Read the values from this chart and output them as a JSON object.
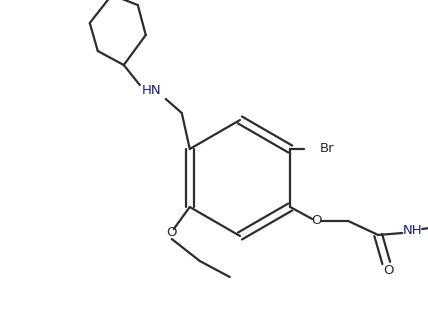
{
  "background_color": "#ffffff",
  "line_color": "#2d2d2d",
  "label_color": "#1a1a8c",
  "lw": 1.6,
  "figsize": [
    4.28,
    3.16
  ],
  "dpi": 100,
  "xlim": [
    0,
    428
  ],
  "ylim": [
    0,
    316
  ]
}
